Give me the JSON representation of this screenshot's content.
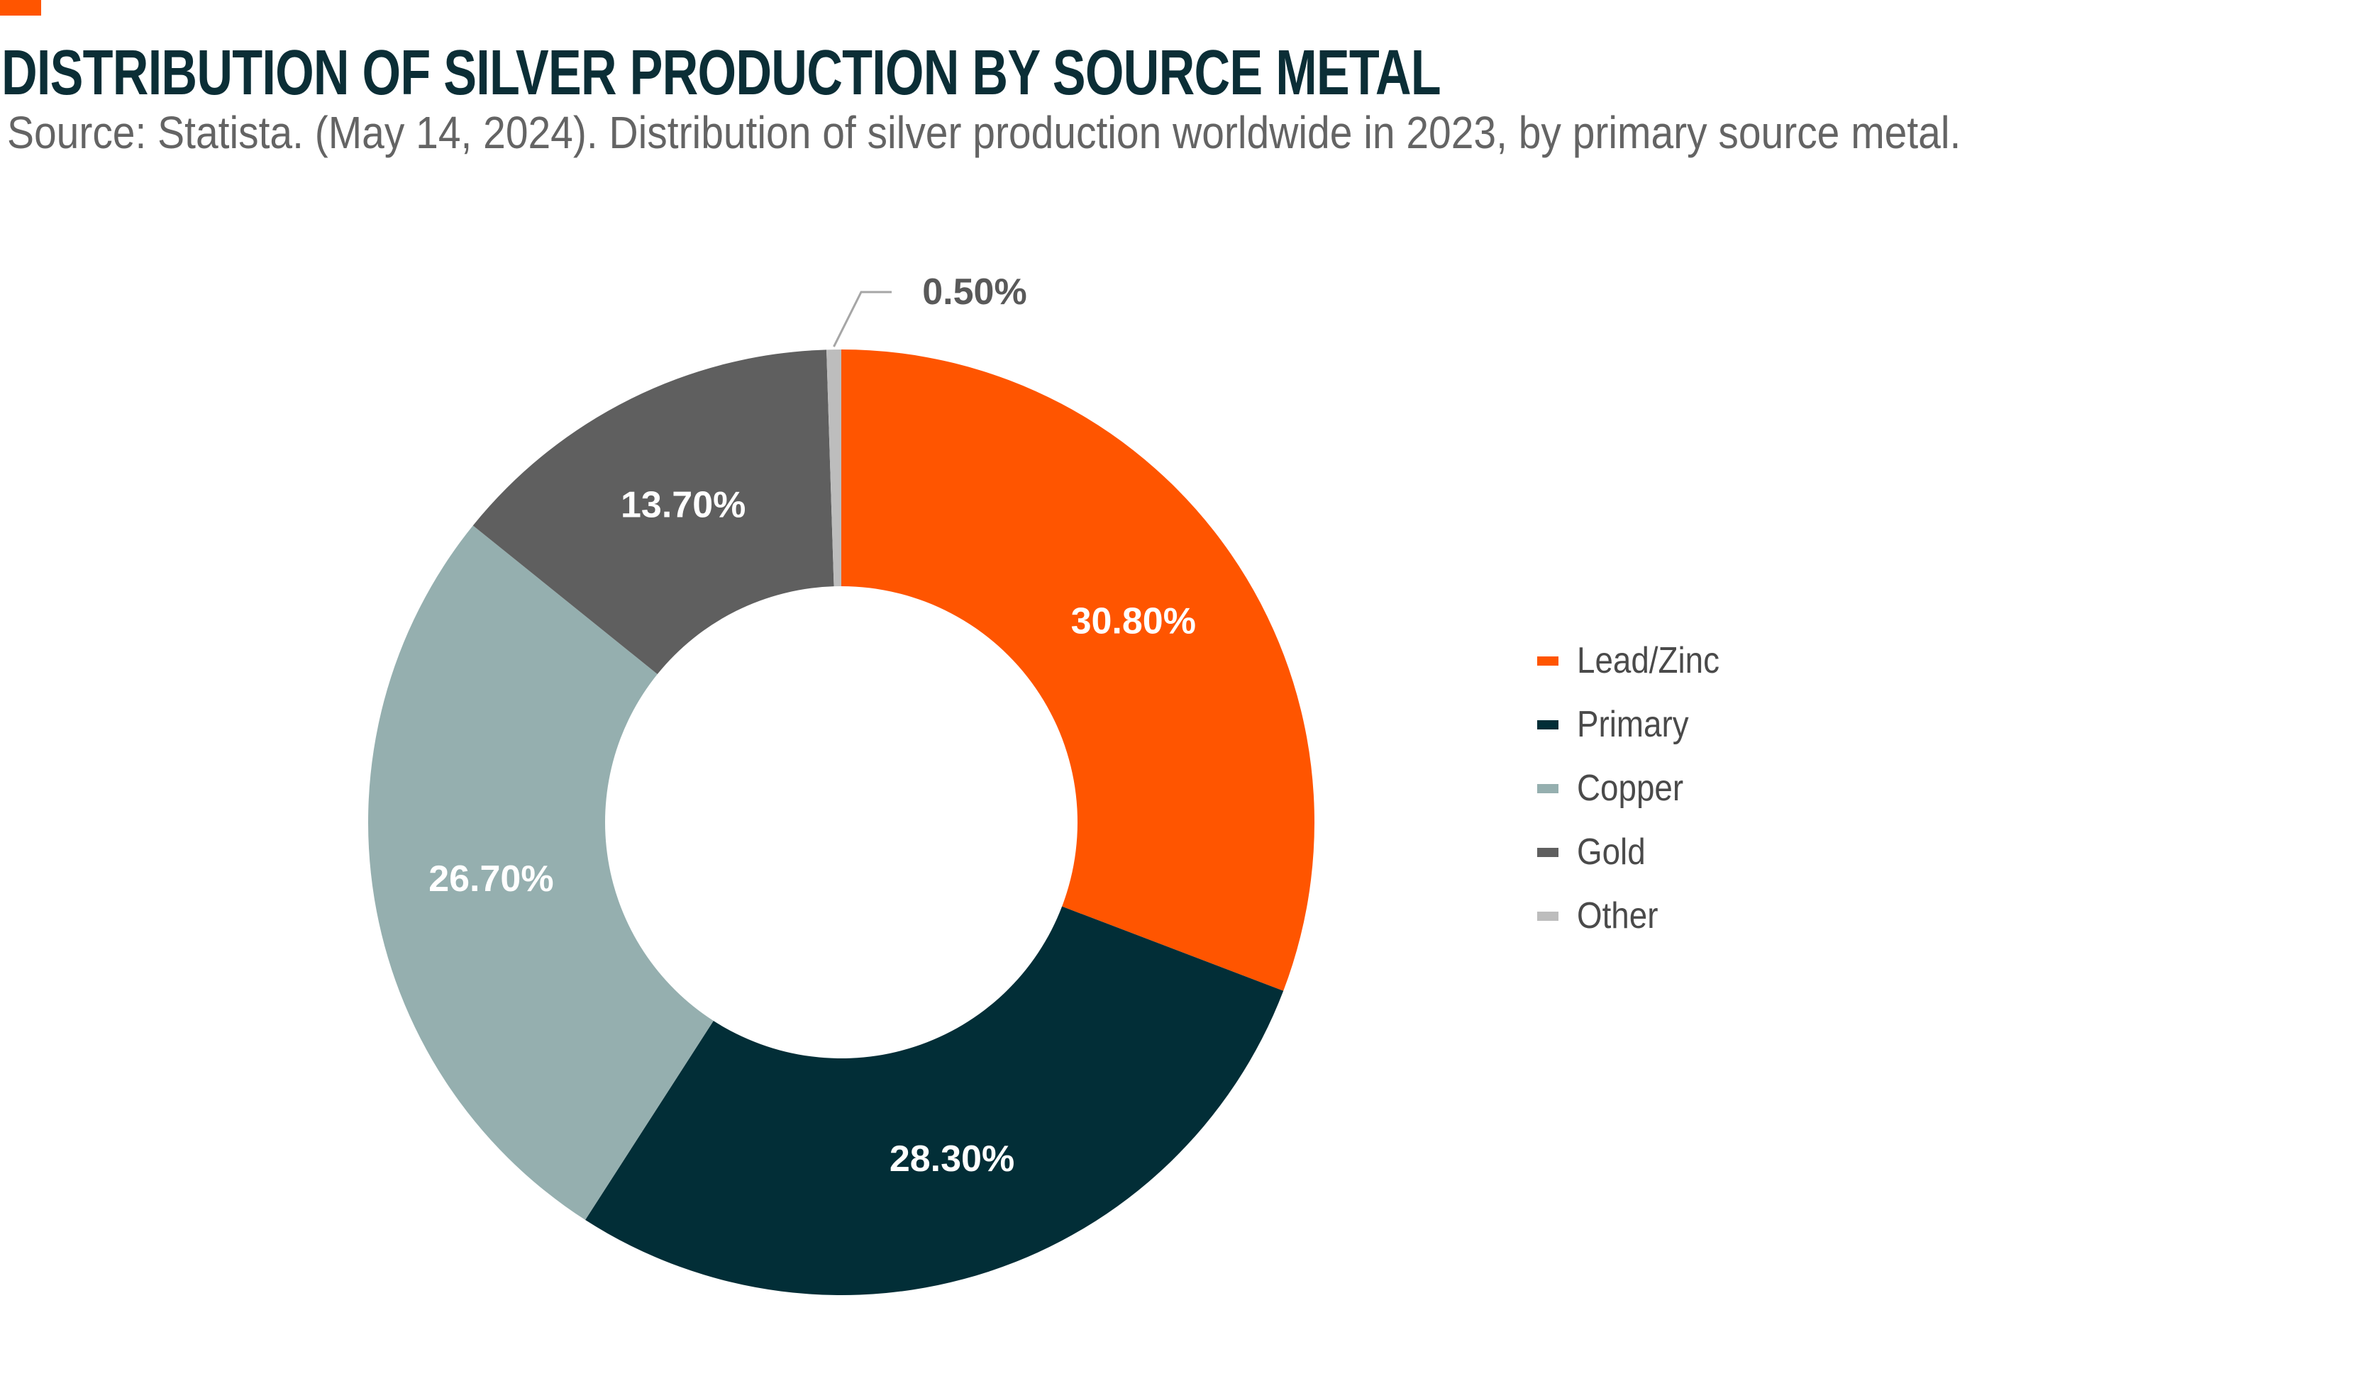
{
  "title": "DISTRIBUTION OF SILVER PRODUCTION BY SOURCE METAL",
  "subtitle": "Source: Statista. (May 14, 2024). Distribution of silver production worldwide in 2023, by primary source metal.",
  "accent_color": "#FF5500",
  "chart_data": {
    "type": "pie",
    "variant": "donut",
    "title": "DISTRIBUTION OF SILVER PRODUCTION BY SOURCE METAL",
    "categories": [
      "Lead/Zinc",
      "Primary",
      "Copper",
      "Gold",
      "Other"
    ],
    "values": [
      30.8,
      28.3,
      26.7,
      13.7,
      0.5
    ],
    "labels": [
      "30.80%",
      "28.30%",
      "26.70%",
      "13.70%",
      "0.50%"
    ],
    "colors": [
      "#FF5500",
      "#022E37",
      "#95AFAF",
      "#5F5F5F",
      "#BDBDBD"
    ],
    "unit": "%",
    "legend_position": "right"
  }
}
